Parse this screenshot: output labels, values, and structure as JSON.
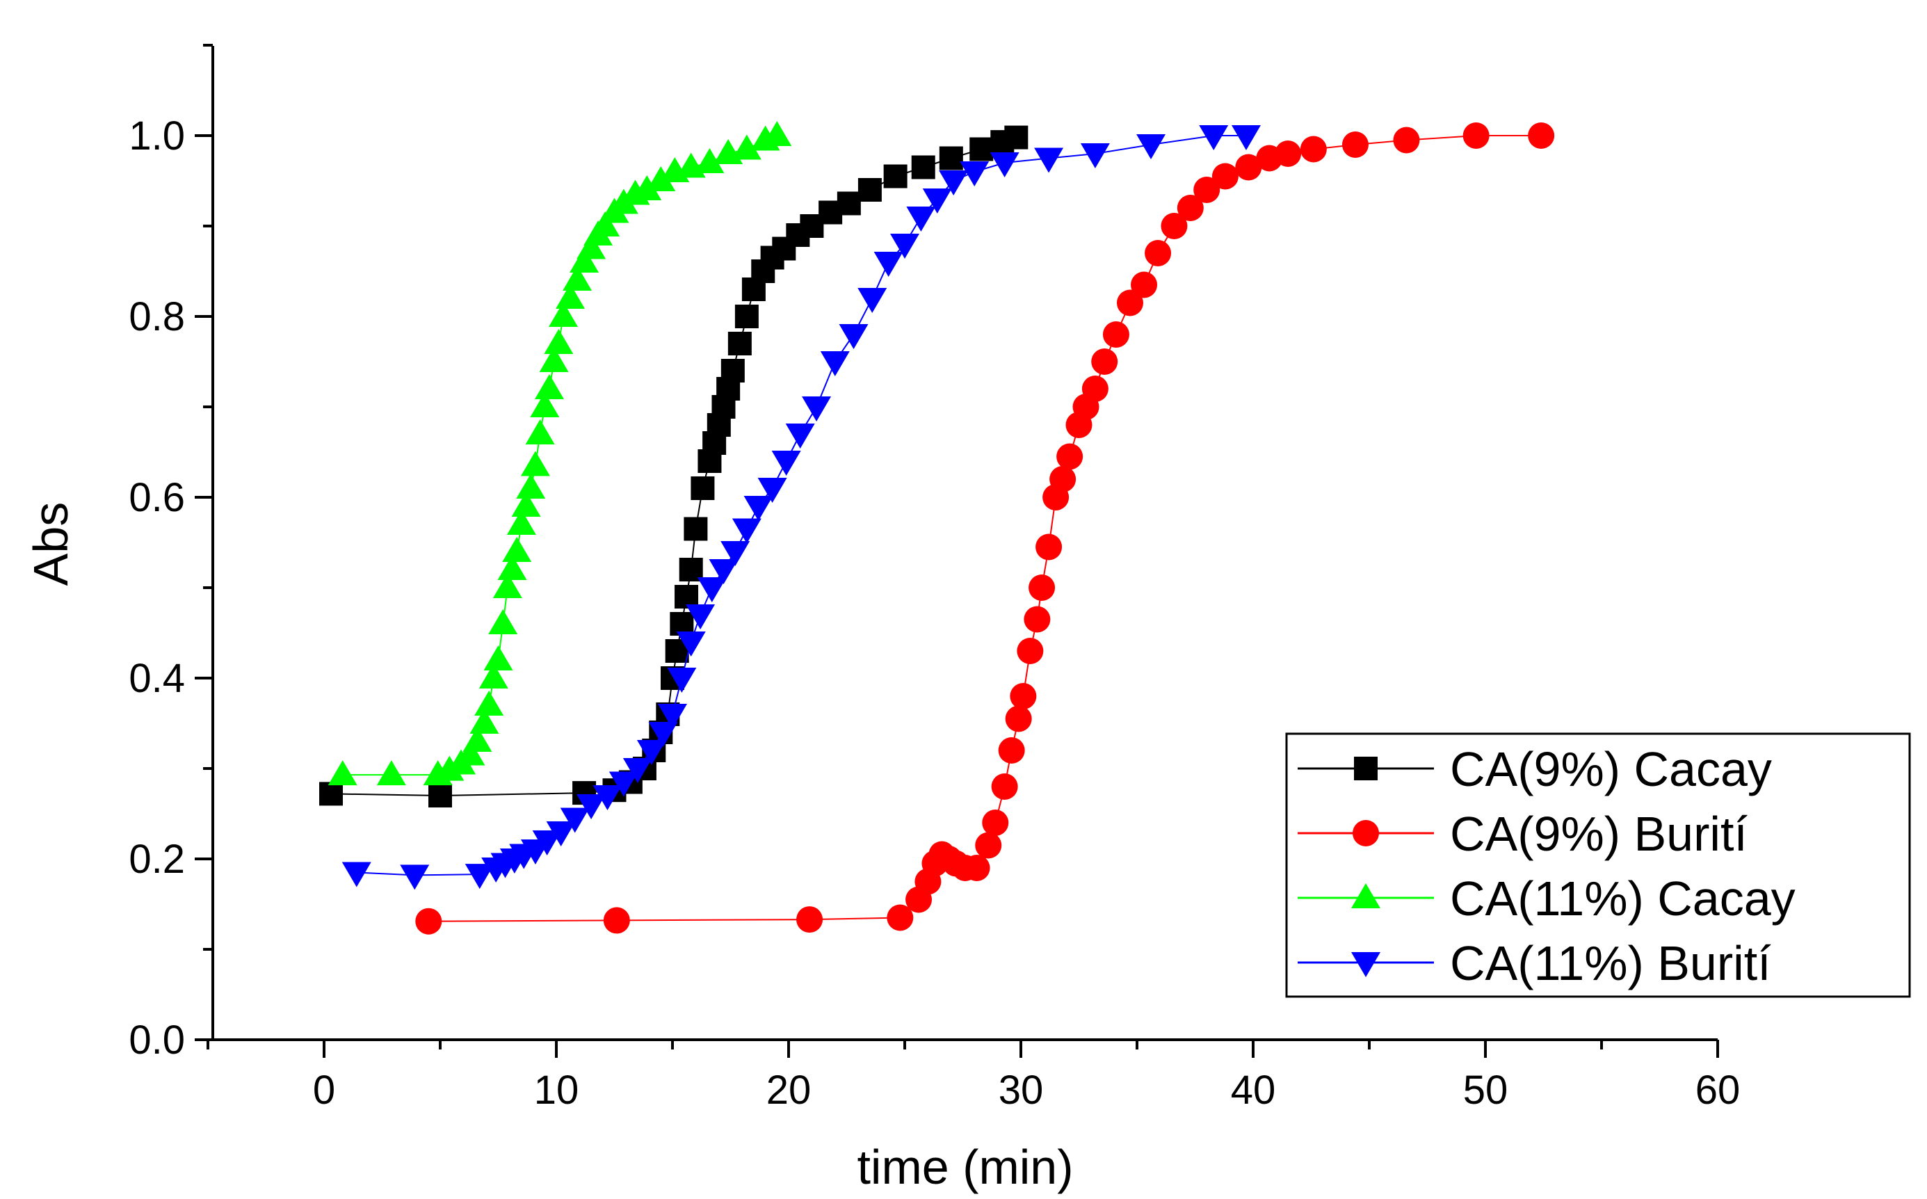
{
  "chart_data": {
    "type": "scatter",
    "title": "",
    "xlabel": "time (min)",
    "ylabel": "Abs",
    "xlim": [
      -5,
      60
    ],
    "ylim": [
      0.0,
      1.1
    ],
    "x_ticks": [
      0,
      10,
      20,
      30,
      40,
      50,
      60
    ],
    "x_tick_labels": [
      "0",
      "10",
      "20",
      "30",
      "40",
      "50",
      "60"
    ],
    "y_ticks": [
      0.0,
      0.2,
      0.4,
      0.6,
      0.8,
      1.0
    ],
    "y_tick_labels": [
      "0.0",
      "0.2",
      "0.4",
      "0.6",
      "0.8",
      "1.0"
    ],
    "legend_position": "bottom-right",
    "series": [
      {
        "name": "CA(9%) Cacay",
        "color": "#000000",
        "marker": "square",
        "x": [
          0.3,
          5.0,
          11.2,
          12.5,
          13.2,
          13.8,
          14.2,
          14.5,
          14.8,
          15.0,
          15.2,
          15.4,
          15.6,
          15.8,
          16.0,
          16.3,
          16.6,
          16.8,
          17.0,
          17.2,
          17.4,
          17.6,
          17.9,
          18.2,
          18.5,
          18.9,
          19.3,
          19.8,
          20.4,
          21.0,
          21.8,
          22.6,
          23.5,
          24.6,
          25.8,
          27.0,
          28.3,
          29.2,
          29.8
        ],
        "y": [
          0.272,
          0.27,
          0.273,
          0.276,
          0.285,
          0.3,
          0.32,
          0.34,
          0.36,
          0.4,
          0.43,
          0.46,
          0.49,
          0.52,
          0.565,
          0.61,
          0.64,
          0.66,
          0.68,
          0.7,
          0.72,
          0.74,
          0.77,
          0.8,
          0.83,
          0.85,
          0.865,
          0.875,
          0.89,
          0.9,
          0.915,
          0.925,
          0.94,
          0.955,
          0.965,
          0.975,
          0.985,
          0.993,
          0.998
        ]
      },
      {
        "name": "CA(9%) Burití",
        "color": "#ff0000",
        "marker": "circle",
        "x": [
          4.5,
          12.6,
          20.9,
          24.8,
          25.6,
          26.0,
          26.3,
          26.6,
          26.9,
          27.2,
          27.6,
          28.1,
          28.6,
          28.9,
          29.3,
          29.6,
          29.9,
          30.1,
          30.4,
          30.7,
          30.9,
          31.2,
          31.5,
          31.8,
          32.1,
          32.5,
          32.8,
          33.2,
          33.6,
          34.1,
          34.7,
          35.3,
          35.9,
          36.6,
          37.3,
          38.0,
          38.8,
          39.8,
          40.7,
          41.5,
          42.6,
          44.4,
          46.6,
          49.6,
          52.4
        ],
        "y": [
          0.131,
          0.132,
          0.133,
          0.135,
          0.155,
          0.175,
          0.195,
          0.205,
          0.2,
          0.195,
          0.19,
          0.19,
          0.215,
          0.24,
          0.28,
          0.32,
          0.355,
          0.38,
          0.43,
          0.465,
          0.5,
          0.545,
          0.6,
          0.62,
          0.645,
          0.68,
          0.7,
          0.72,
          0.75,
          0.78,
          0.815,
          0.835,
          0.87,
          0.9,
          0.92,
          0.94,
          0.955,
          0.965,
          0.975,
          0.98,
          0.985,
          0.99,
          0.995,
          1.0,
          1.0
        ]
      },
      {
        "name": "CA(11%) Cacay",
        "color": "#00ff00",
        "marker": "triangle-up",
        "x": [
          0.8,
          2.9,
          4.9,
          5.4,
          5.9,
          6.3,
          6.6,
          6.9,
          7.1,
          7.3,
          7.5,
          7.7,
          7.9,
          8.1,
          8.3,
          8.5,
          8.7,
          8.9,
          9.1,
          9.3,
          9.5,
          9.7,
          9.9,
          10.1,
          10.3,
          10.6,
          10.9,
          11.2,
          11.5,
          11.8,
          12.1,
          12.5,
          12.9,
          13.4,
          13.9,
          14.5,
          15.1,
          15.8,
          16.6,
          17.4,
          18.2,
          19.0,
          19.5
        ],
        "y": [
          0.293,
          0.293,
          0.293,
          0.298,
          0.305,
          0.315,
          0.33,
          0.35,
          0.37,
          0.4,
          0.42,
          0.46,
          0.5,
          0.52,
          0.54,
          0.57,
          0.59,
          0.61,
          0.635,
          0.67,
          0.7,
          0.72,
          0.75,
          0.77,
          0.8,
          0.82,
          0.84,
          0.86,
          0.875,
          0.89,
          0.9,
          0.915,
          0.925,
          0.935,
          0.94,
          0.95,
          0.96,
          0.965,
          0.97,
          0.98,
          0.985,
          0.995,
          1.0
        ]
      },
      {
        "name": "CA(11%) Burití",
        "color": "#0000ff",
        "marker": "triangle-down",
        "x": [
          1.4,
          3.9,
          6.7,
          7.4,
          7.8,
          8.2,
          8.6,
          9.1,
          9.6,
          10.2,
          10.8,
          11.5,
          12.2,
          12.9,
          13.5,
          14.1,
          14.6,
          15.0,
          15.4,
          15.8,
          16.2,
          16.7,
          17.2,
          17.7,
          18.2,
          18.7,
          19.3,
          19.9,
          20.5,
          21.2,
          22.0,
          22.8,
          23.6,
          24.3,
          25.0,
          25.7,
          26.4,
          27.1,
          28.0,
          29.3,
          31.2,
          33.2,
          35.6,
          38.3,
          39.7
        ],
        "y": [
          0.185,
          0.182,
          0.183,
          0.19,
          0.195,
          0.2,
          0.205,
          0.21,
          0.22,
          0.23,
          0.245,
          0.26,
          0.27,
          0.285,
          0.3,
          0.32,
          0.34,
          0.36,
          0.4,
          0.44,
          0.47,
          0.5,
          0.52,
          0.54,
          0.565,
          0.59,
          0.61,
          0.64,
          0.67,
          0.7,
          0.75,
          0.78,
          0.82,
          0.86,
          0.88,
          0.91,
          0.93,
          0.95,
          0.96,
          0.97,
          0.975,
          0.98,
          0.99,
          1.0,
          1.0
        ]
      }
    ]
  }
}
